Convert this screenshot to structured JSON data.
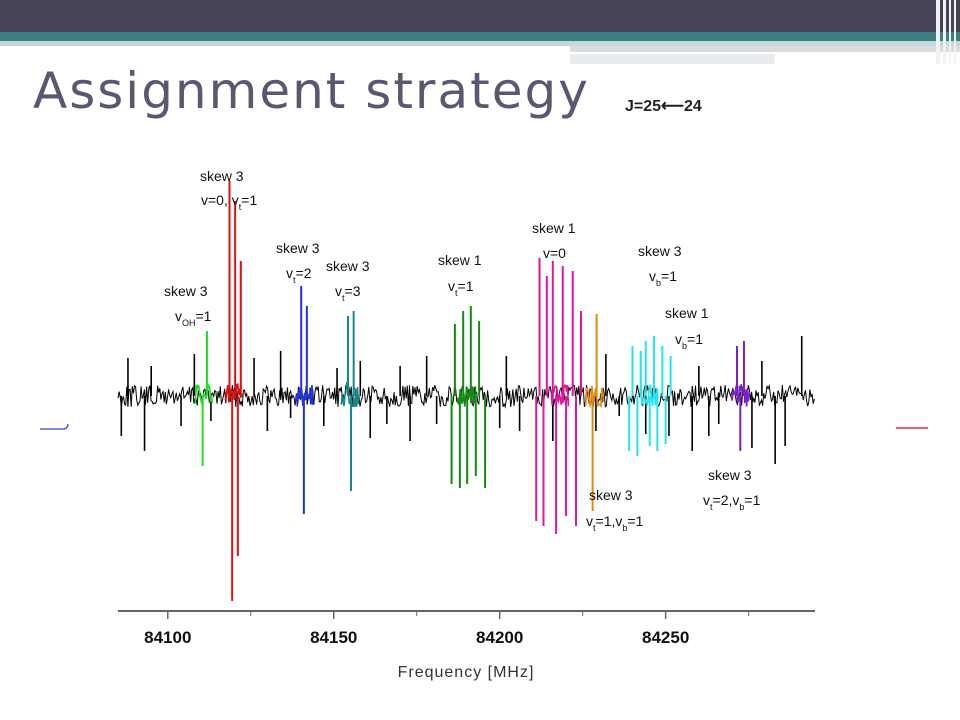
{
  "slide": {
    "title": "Assignment strategy",
    "transition_label": "J=25⟵24"
  },
  "chart_data": {
    "type": "line",
    "xlabel": "Frequency [MHz]",
    "ylabel": "",
    "xlim": [
      84085,
      84295
    ],
    "x_ticks": [
      "84100",
      "84150",
      "84200",
      "84250"
    ],
    "grid": false,
    "colors": {
      "baseline": "#000000",
      "v_OH=1": "#22dd22",
      "v=0, vt=1": "#dd1111",
      "vt=2": "#2233dd",
      "vt=3": "#11888a",
      "vt=1": "#138a13",
      "v=0": "#e0159a",
      "vt=1,vb=1": "#e08a10",
      "vb=1 (skew 3)": "#22e5f0",
      "vb=1 (skew 1)": "#7a22c8"
    },
    "series": [
      {
        "name": "black",
        "lines": [
          [
            84086,
            -40
          ],
          [
            84088,
            38
          ],
          [
            84093,
            -55
          ],
          [
            84095,
            30
          ],
          [
            84104,
            -30
          ],
          [
            84108,
            42
          ],
          [
            84113,
            -25
          ],
          [
            84126,
            38
          ],
          [
            84130,
            -35
          ],
          [
            84134,
            45
          ],
          [
            84137,
            -22
          ],
          [
            84147,
            -30
          ],
          [
            84151,
            28
          ],
          [
            84158,
            35
          ],
          [
            84161,
            -42
          ],
          [
            84166,
            -28
          ],
          [
            84170,
            30
          ],
          [
            84173,
            -45
          ],
          [
            84178,
            40
          ],
          [
            84181,
            -28
          ],
          [
            84200,
            -32
          ],
          [
            84202,
            40
          ],
          [
            84206,
            -35
          ],
          [
            84216,
            -45
          ],
          [
            84219,
            38
          ],
          [
            84223,
            -25
          ],
          [
            84229,
            -35
          ],
          [
            84232,
            42
          ],
          [
            84236,
            -20
          ],
          [
            84244,
            -38
          ],
          [
            84251,
            -40
          ],
          [
            84258,
            -55
          ],
          [
            84260,
            30
          ],
          [
            84263,
            -40
          ],
          [
            84266,
            -28
          ],
          [
            84276,
            -52
          ],
          [
            84279,
            35
          ],
          [
            84283,
            -68
          ],
          [
            84286,
            -50
          ],
          [
            84291,
            60
          ]
        ]
      },
      {
        "name": "v_OH=1",
        "center": 84111,
        "lines": [
          [
            84110.5,
            -70
          ],
          [
            84111.8,
            65
          ]
        ]
      },
      {
        "name": "v=0, vt=1",
        "center": 84120,
        "lines": [
          [
            84118.6,
            215
          ],
          [
            84119.4,
            -205
          ],
          [
            84120.3,
            195
          ],
          [
            84121.1,
            -160
          ],
          [
            84122.0,
            135
          ]
        ]
      },
      {
        "name": "vt=2",
        "center": 84141,
        "lines": [
          [
            84140.2,
            110
          ],
          [
            84141.0,
            -118
          ],
          [
            84141.9,
            90
          ]
        ]
      },
      {
        "name": "vt=3",
        "center": 84155,
        "lines": [
          [
            84154.3,
            80
          ],
          [
            84155.2,
            -95
          ],
          [
            84156.0,
            85
          ]
        ]
      },
      {
        "name": "vt=1",
        "center": 84190,
        "lines": [
          [
            84185.5,
            -88
          ],
          [
            84186.5,
            72
          ],
          [
            84188.0,
            -92
          ],
          [
            84189.0,
            85
          ],
          [
            84190.2,
            -88
          ],
          [
            84191.3,
            90
          ],
          [
            84192.8,
            -80
          ],
          [
            84193.8,
            75
          ],
          [
            84195.6,
            -92
          ]
        ]
      },
      {
        "name": "v=0",
        "center": 84218,
        "lines": [
          [
            84211.0,
            -125
          ],
          [
            84212.0,
            138
          ],
          [
            84213.2,
            -130
          ],
          [
            84214.2,
            120
          ],
          [
            84216.0,
            135
          ],
          [
            84217.0,
            -138
          ],
          [
            84219.0,
            130
          ],
          [
            84220.0,
            -120
          ],
          [
            84222.0,
            125
          ],
          [
            84223.0,
            -130
          ],
          [
            84224.5,
            85
          ]
        ]
      },
      {
        "name": "vt=1,vb=1",
        "center": 84228.6,
        "lines": [
          [
            84228.0,
            -115
          ],
          [
            84229.2,
            82
          ]
        ]
      },
      {
        "name": "vb=1 (skew 3)",
        "center": 84245,
        "lines": [
          [
            84239.0,
            -55
          ],
          [
            84240.0,
            50
          ],
          [
            84241.5,
            -60
          ],
          [
            84242.5,
            45
          ],
          [
            84244.0,
            55
          ],
          [
            84245.2,
            -50
          ],
          [
            84246.5,
            60
          ],
          [
            84247.5,
            -55
          ],
          [
            84249.0,
            50
          ],
          [
            84250.0,
            -48
          ],
          [
            84251.5,
            40
          ]
        ]
      },
      {
        "name": "vb=1 (skew 1)",
        "center": 84272.5,
        "lines": [
          [
            84271.5,
            50
          ],
          [
            84272.5,
            -55
          ],
          [
            84273.6,
            55
          ]
        ]
      }
    ],
    "annotations": [
      {
        "line1": "skew 3",
        "line2": "v",
        "sub": "OH",
        "rest": "=1",
        "x": 84111
      },
      {
        "line1": "skew 3",
        "line2": "v=0, v",
        "sub": "t",
        "rest": "=1",
        "x": 84120
      },
      {
        "line1": "skew 3",
        "line2": "v",
        "sub": "t",
        "rest": "=2",
        "x": 84141
      },
      {
        "line1": "skew 3",
        "line2": "v",
        "sub": "t",
        "rest": "=3",
        "x": 84155
      },
      {
        "line1": "skew 1",
        "line2": "v",
        "sub": "t",
        "rest": "=1",
        "x": 84190
      },
      {
        "line1": "skew 1",
        "line2": "v=0",
        "sub": "",
        "rest": "",
        "x": 84218
      },
      {
        "line1": "skew 3",
        "line2": "v",
        "sub": "b",
        "rest": "=1",
        "x": 84248
      },
      {
        "line1": "skew 1",
        "line2": "v",
        "sub": "b",
        "rest": "=1",
        "x": 84272
      },
      {
        "line1": "skew 3",
        "line2": "v",
        "sub": "t",
        "rest": "=1,v",
        "sub2": "b",
        "rest2": "=1",
        "x": 84230
      },
      {
        "line1": "skew 3",
        "line2": "v",
        "sub": "t",
        "rest": "=2,v",
        "sub2": "b",
        "rest2": "=1",
        "x": 84274
      }
    ]
  }
}
